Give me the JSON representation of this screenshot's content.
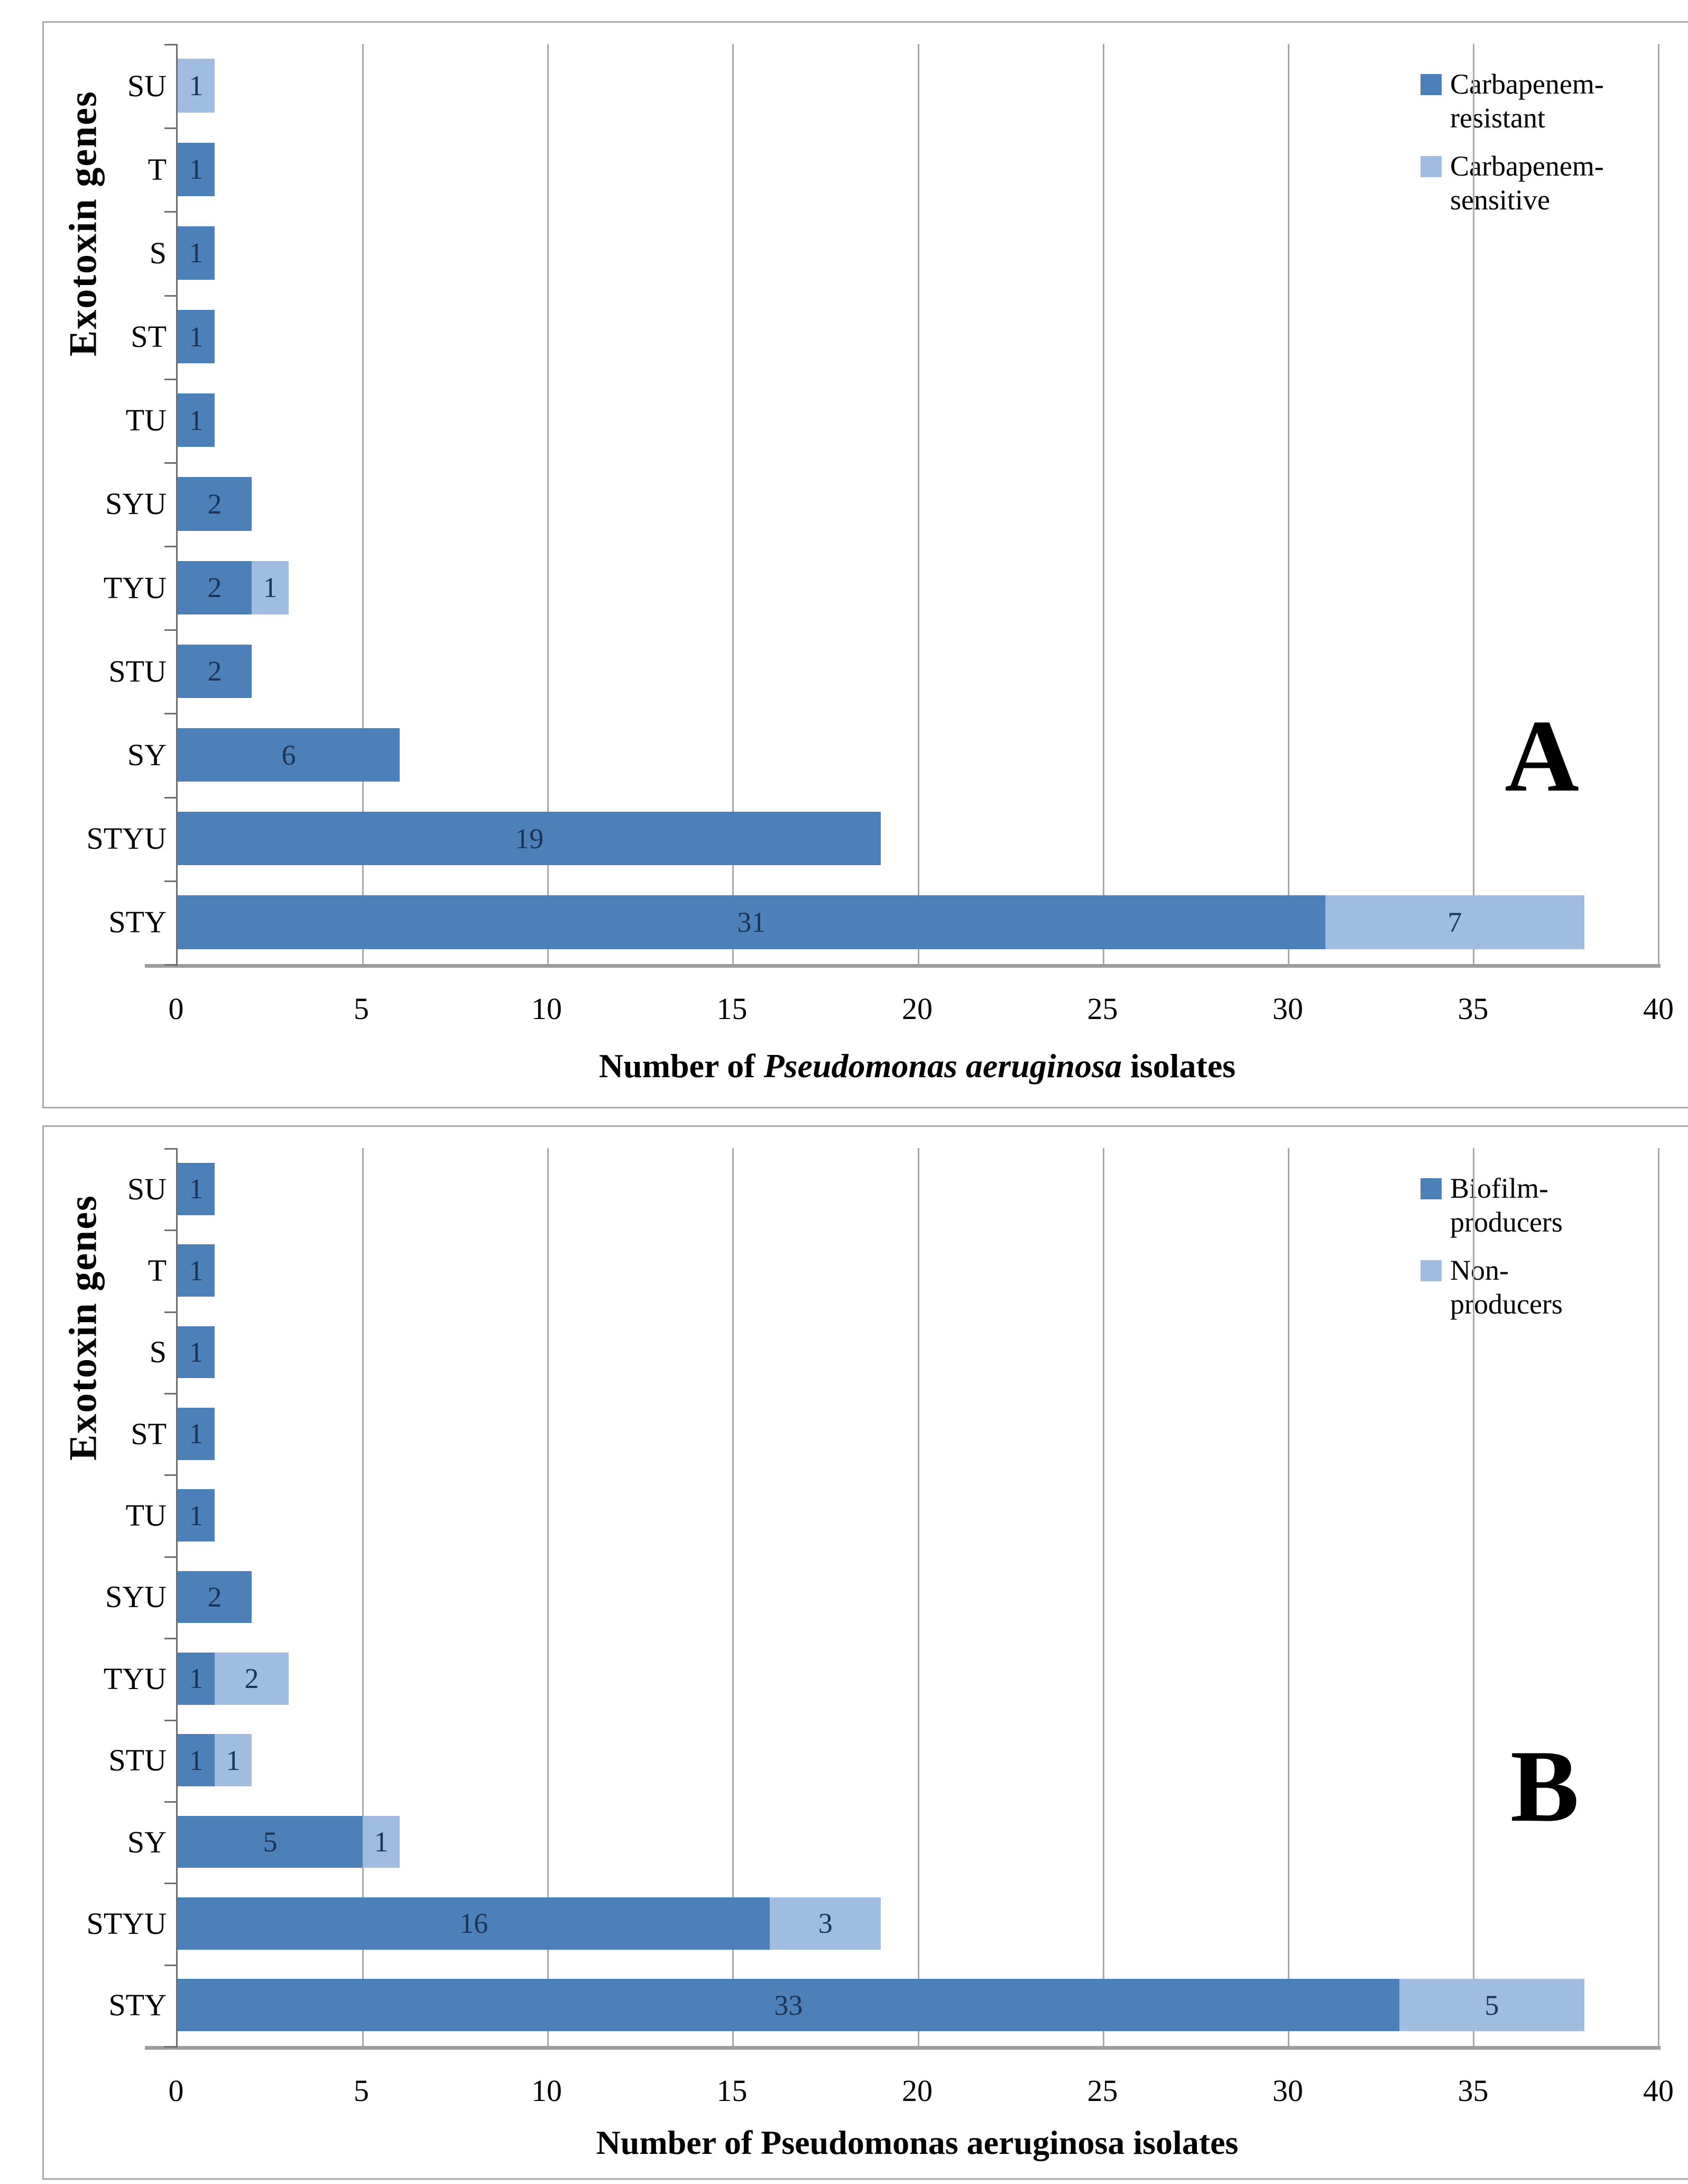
{
  "page": {
    "background": "#ffffff"
  },
  "colors": {
    "series_dark": "#4d80b9",
    "series_light": "#a0bde0",
    "data_label": "#1b3356",
    "gridline": "#a8a8a8",
    "axis_line": "#6e6e6e",
    "panel_border": "#a9a9a9"
  },
  "chart_data": [
    {
      "type": "bar",
      "orientation": "horizontal",
      "stacked": true,
      "panel_letter": "A",
      "ylabel": "Exotoxin genes",
      "xlabel_parts": [
        {
          "text": "Number of ",
          "italic": false
        },
        {
          "text": "Pseudomonas aeruginosa",
          "italic": true
        },
        {
          "text": " isolates",
          "italic": false
        }
      ],
      "categories": [
        "SU",
        "T",
        "S",
        "ST",
        "TU",
        "SYU",
        "TYU",
        "STU",
        "SY",
        "STYU",
        "STY"
      ],
      "series": [
        {
          "name": "Carbapenem-\nresistant",
          "color_key": "series_dark",
          "values": [
            0,
            1,
            1,
            1,
            1,
            2,
            2,
            2,
            6,
            19,
            31
          ]
        },
        {
          "name": "Carbapenem-\nsensitive",
          "color_key": "series_light",
          "values": [
            1,
            0,
            0,
            0,
            0,
            0,
            1,
            0,
            0,
            0,
            7
          ]
        }
      ],
      "xlim": [
        0,
        40
      ],
      "xticks": [
        0,
        5,
        10,
        15,
        20,
        25,
        30,
        35,
        40
      ],
      "grid": true,
      "legend_position": "top-right"
    },
    {
      "type": "bar",
      "orientation": "horizontal",
      "stacked": true,
      "panel_letter": "B",
      "ylabel": "Exotoxin genes",
      "xlabel_parts": [
        {
          "text": "Number of Pseudomonas aeruginosa isolates",
          "italic": false
        }
      ],
      "categories": [
        "SU",
        "T",
        "S",
        "ST",
        "TU",
        "SYU",
        "TYU",
        "STU",
        "SY",
        "STYU",
        "STY"
      ],
      "series": [
        {
          "name": "Biofilm-\nproducers",
          "color_key": "series_dark",
          "values": [
            1,
            1,
            1,
            1,
            1,
            2,
            1,
            1,
            5,
            16,
            33
          ]
        },
        {
          "name": "Non-\nproducers",
          "color_key": "series_light",
          "values": [
            0,
            0,
            0,
            0,
            0,
            0,
            2,
            1,
            1,
            3,
            5
          ]
        }
      ],
      "xlim": [
        0,
        40
      ],
      "xticks": [
        0,
        5,
        10,
        15,
        20,
        25,
        30,
        35,
        40
      ],
      "grid": true,
      "legend_position": "top-right"
    }
  ]
}
